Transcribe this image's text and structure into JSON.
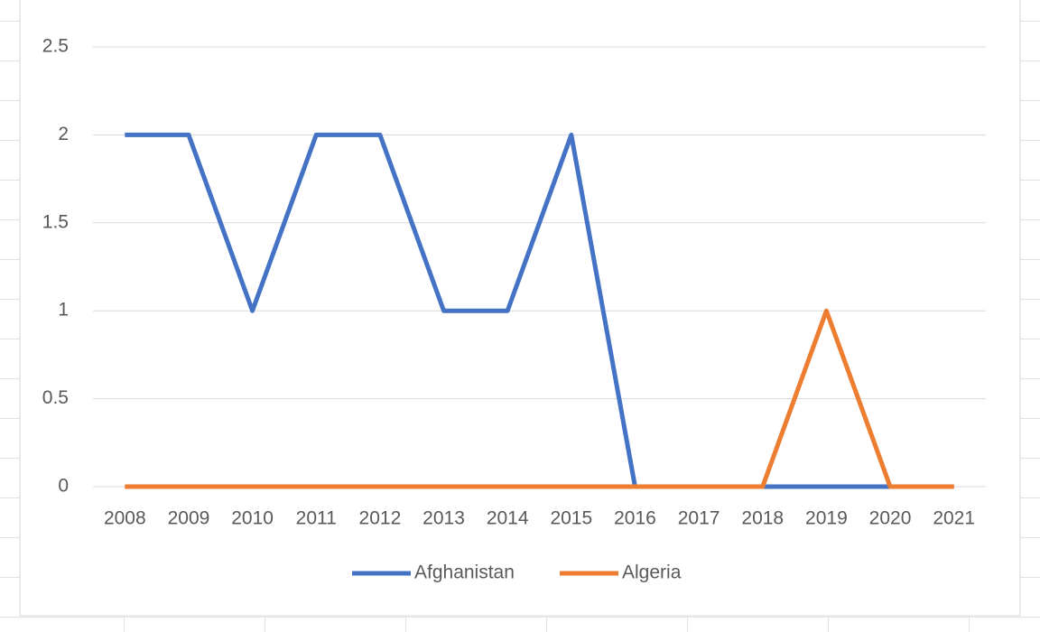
{
  "chart_data": {
    "type": "line",
    "categories": [
      "2008",
      "2009",
      "2010",
      "2011",
      "2012",
      "2013",
      "2014",
      "2015",
      "2016",
      "2017",
      "2018",
      "2019",
      "2020",
      "2021"
    ],
    "series": [
      {
        "name": "Afghanistan",
        "color": "#4472c4",
        "values": [
          2,
          2,
          1,
          2,
          2,
          1,
          1,
          2,
          0,
          0,
          0,
          0,
          0,
          0
        ]
      },
      {
        "name": "Algeria",
        "color": "#ed7d31",
        "values": [
          0,
          0,
          0,
          0,
          0,
          0,
          0,
          0,
          0,
          0,
          0,
          1,
          0,
          0
        ]
      }
    ],
    "ylim": [
      0,
      2.5
    ],
    "yticks": [
      0,
      0.5,
      1,
      1.5,
      2,
      2.5
    ],
    "grid": true,
    "legend": "bottom"
  }
}
